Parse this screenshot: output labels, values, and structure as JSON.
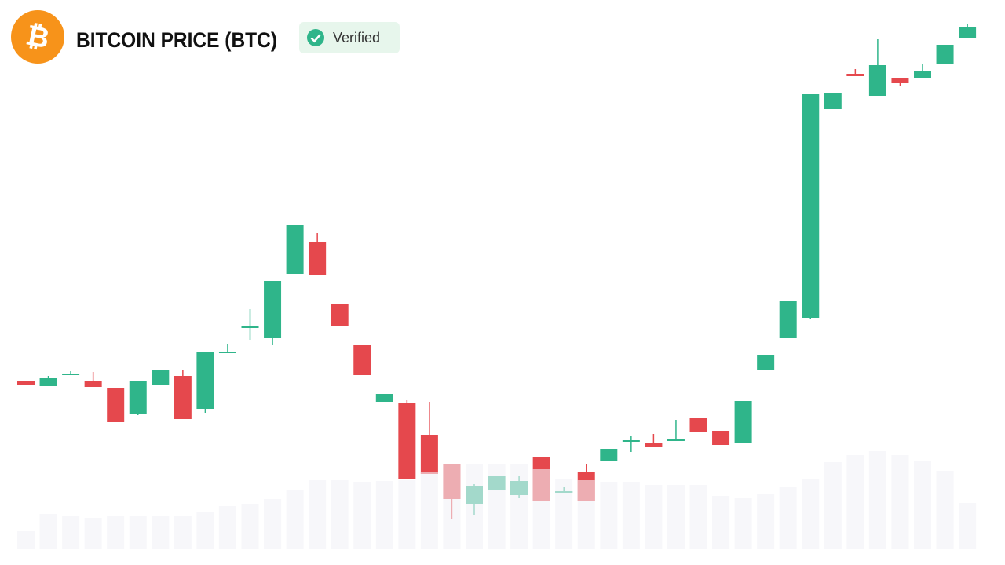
{
  "chart_data": {
    "type": "candlestick",
    "title": "BITCOIN PRICE (BTC)",
    "badge": "Verified",
    "up_color": "#2fb58a",
    "down_color": "#e5484d",
    "volume_color": "#f2f2f6",
    "open": [
      215,
      208,
      222,
      214,
      206,
      173,
      209,
      221,
      179,
      250,
      282,
      269,
      351,
      392,
      312,
      260,
      188,
      187,
      146,
      109,
      58,
      76,
      69,
      117,
      72,
      99,
      113,
      137,
      136,
      138,
      167,
      151,
      135,
      229,
      269,
      295,
      561,
      606,
      578,
      601,
      601,
      618,
      652
    ],
    "high": [
      215,
      221,
      227,
      226,
      206,
      215,
      228,
      228,
      252,
      262,
      306,
      342,
      413,
      403,
      312,
      260,
      198,
      190,
      188,
      109,
      83,
      94,
      93,
      117,
      79,
      109,
      128,
      144,
      147,
      165,
      167,
      151,
      189,
      248,
      316,
      580,
      582,
      612,
      650,
      601,
      619,
      643,
      670
    ],
    "low": [
      209,
      208,
      222,
      207,
      162,
      171,
      209,
      166,
      174,
      250,
      267,
      260,
      351,
      349,
      285,
      222,
      188,
      90,
      96,
      38,
      44,
      76,
      66,
      62,
      72,
      62,
      113,
      124,
      131,
      138,
      150,
      133,
      135,
      229,
      269,
      293,
      561,
      603,
      578,
      591,
      601,
      618,
      652
    ],
    "close": [
      209,
      218,
      224,
      207,
      162,
      214,
      228,
      166,
      252,
      252,
      284,
      342,
      413,
      349,
      285,
      222,
      198,
      90,
      96,
      64,
      81,
      94,
      87,
      62,
      74,
      62,
      128,
      139,
      131,
      141,
      150,
      133,
      189,
      248,
      316,
      580,
      582,
      603,
      617,
      594,
      610,
      643,
      666
    ],
    "volume": [
      23,
      45,
      42,
      40,
      42,
      43,
      43,
      42,
      47,
      55,
      58,
      64,
      76,
      88,
      88,
      86,
      87,
      88,
      99,
      109,
      109,
      109,
      109,
      102,
      90,
      88,
      86,
      86,
      82,
      82,
      82,
      68,
      66,
      70,
      80,
      90,
      111,
      120,
      125,
      120,
      112,
      100,
      59
    ]
  }
}
